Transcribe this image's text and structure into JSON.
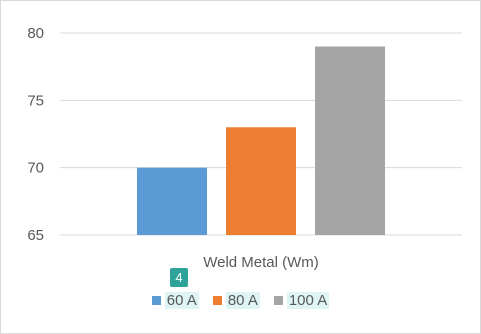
{
  "chart_data": {
    "type": "bar",
    "categories": [
      "Weld Metal (Wm)"
    ],
    "series": [
      {
        "name": "60 A",
        "values": [
          70
        ],
        "color": "#5b9bd5"
      },
      {
        "name": "80 A",
        "values": [
          73
        ],
        "color": "#ed7d31"
      },
      {
        "name": "100 A",
        "values": [
          79
        ],
        "color": "#a5a5a5"
      }
    ],
    "ylim": [
      65,
      80
    ],
    "yticks": [
      "65",
      "70",
      "75",
      "80"
    ],
    "grid": true,
    "legend_position": "bottom"
  },
  "annotation_badge": "4"
}
